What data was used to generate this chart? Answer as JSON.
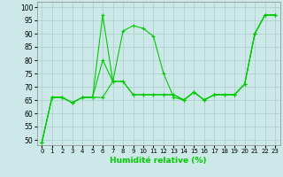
{
  "title": "",
  "xlabel": "Humidité relative (%)",
  "ylabel": "",
  "background_color": "#cce8e8",
  "grid_color": "#aacccc",
  "line_color": "#00cc00",
  "xlim": [
    -0.5,
    23.5
  ],
  "ylim": [
    48,
    102
  ],
  "yticks": [
    50,
    55,
    60,
    65,
    70,
    75,
    80,
    85,
    90,
    95,
    100
  ],
  "xticks": [
    0,
    1,
    2,
    3,
    4,
    5,
    6,
    7,
    8,
    9,
    10,
    11,
    12,
    13,
    14,
    15,
    16,
    17,
    18,
    19,
    20,
    21,
    22,
    23
  ],
  "series": [
    [
      49,
      66,
      66,
      64,
      66,
      66,
      66,
      72,
      72,
      67,
      67,
      67,
      67,
      67,
      65,
      68,
      65,
      67,
      67,
      67,
      71,
      90,
      97,
      97
    ],
    [
      49,
      66,
      66,
      64,
      66,
      66,
      97,
      72,
      91,
      93,
      92,
      89,
      75,
      66,
      65,
      68,
      65,
      67,
      67,
      67,
      71,
      90,
      97,
      97
    ],
    [
      49,
      66,
      66,
      64,
      66,
      66,
      80,
      72,
      72,
      67,
      67,
      67,
      67,
      67,
      65,
      68,
      65,
      67,
      67,
      67,
      71,
      90,
      97,
      97
    ]
  ]
}
